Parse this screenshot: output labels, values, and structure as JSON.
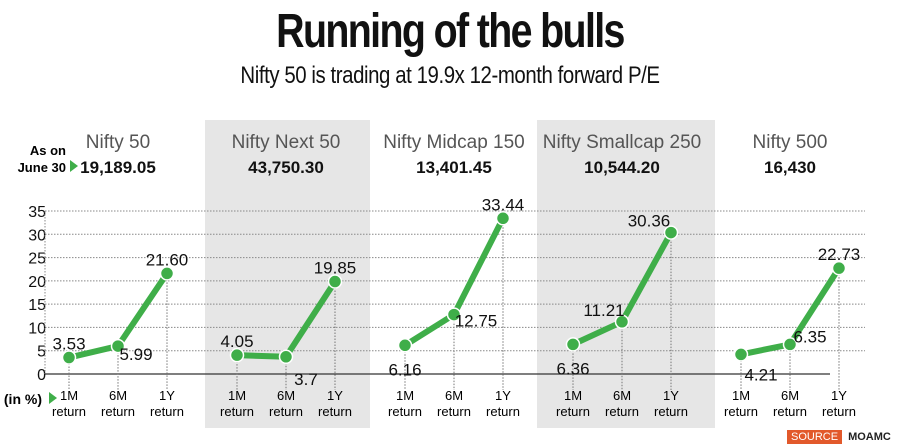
{
  "title": "Running of the bulls",
  "subtitle": "Nifty 50 is trading at 19.9x 12-month forward P/E",
  "as_on_label": [
    "As on",
    "June 30"
  ],
  "unit_label": "(in %)",
  "source_label": "SOURCE",
  "source_value": "MOAMC",
  "colors": {
    "line": "#3fae49",
    "shade": "#e6e6e6",
    "source": "#e2592b"
  },
  "chart_data": {
    "type": "line",
    "title": "Running of the bulls",
    "ylabel": "(in %)",
    "ylim": [
      0,
      35
    ],
    "yticks": [
      0,
      5,
      10,
      15,
      20,
      25,
      30,
      35
    ],
    "grid": true,
    "categories": [
      [
        "1M",
        "return"
      ],
      [
        "6M",
        "return"
      ],
      [
        "1Y",
        "return"
      ]
    ],
    "series": [
      {
        "name": "Nifty 50",
        "index_value": "19,189.05",
        "values": [
          3.53,
          5.99,
          21.6
        ],
        "labels": [
          "3.53",
          "5.99",
          "21.60"
        ],
        "shaded": false
      },
      {
        "name": "Nifty Next 50",
        "index_value": "43,750.30",
        "values": [
          4.05,
          3.7,
          19.85
        ],
        "labels": [
          "4.05",
          "3.7",
          "19.85"
        ],
        "shaded": true
      },
      {
        "name": "Nifty Midcap 150",
        "index_value": "13,401.45",
        "values": [
          6.16,
          12.75,
          33.44
        ],
        "labels": [
          "6.16",
          "12.75",
          "33.44"
        ],
        "shaded": false
      },
      {
        "name": "Nifty Smallcap 250",
        "index_value": "10,544.20",
        "values": [
          6.36,
          11.21,
          30.36
        ],
        "labels": [
          "6.36",
          "11.21",
          "30.36"
        ],
        "shaded": true
      },
      {
        "name": "Nifty 500",
        "index_value": "16,430",
        "values": [
          4.21,
          6.35,
          22.73
        ],
        "labels": [
          "4.21",
          "6.35",
          "22.73"
        ],
        "shaded": false
      }
    ]
  }
}
